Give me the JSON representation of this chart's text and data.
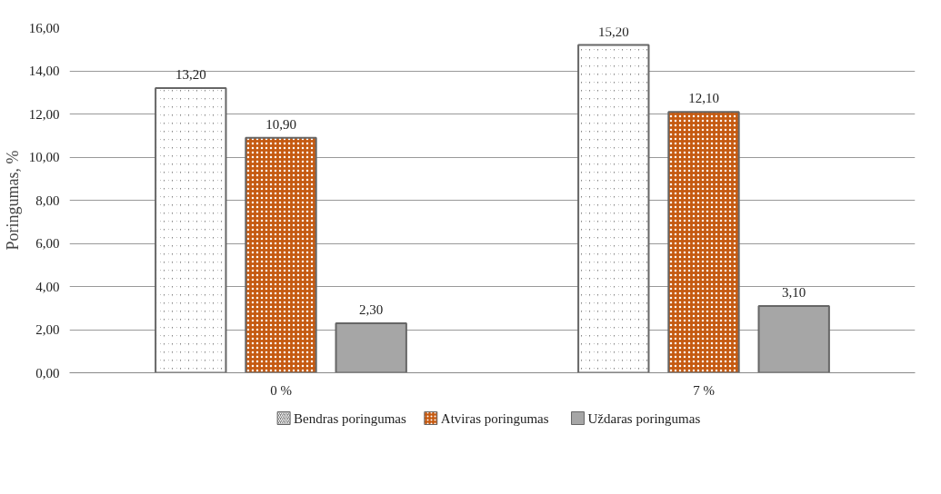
{
  "chart_data": {
    "type": "bar",
    "ylabel": "Poringumas, %",
    "categories": [
      "0 %",
      "7 %"
    ],
    "series": [
      {
        "name": "Bendras poringumas",
        "color": "#7f7f7f",
        "values": [
          13.2,
          15.2
        ],
        "value_labels": [
          "13,20",
          "15,20"
        ]
      },
      {
        "name": "Atviras poringumas",
        "color": "#c55a11",
        "values": [
          10.9,
          12.1
        ],
        "value_labels": [
          "10,90",
          "12,10"
        ]
      },
      {
        "name": "Uždaras poringumas",
        "color": "#a6a6a6",
        "values": [
          2.3,
          3.1
        ],
        "value_labels": [
          "2,30",
          "3,10"
        ]
      }
    ],
    "ylim": [
      0,
      16
    ],
    "yticks": [
      {
        "value": 0,
        "label": "0,00"
      },
      {
        "value": 2,
        "label": "2,00"
      },
      {
        "value": 4,
        "label": "4,00"
      },
      {
        "value": 6,
        "label": "6,00"
      },
      {
        "value": 8,
        "label": "8,00"
      },
      {
        "value": 10,
        "label": "10,00"
      },
      {
        "value": 12,
        "label": "12,00"
      },
      {
        "value": 14,
        "label": "14,00"
      },
      {
        "value": 16,
        "label": "16,00"
      }
    ],
    "grid": "y",
    "legend": "bottom"
  }
}
